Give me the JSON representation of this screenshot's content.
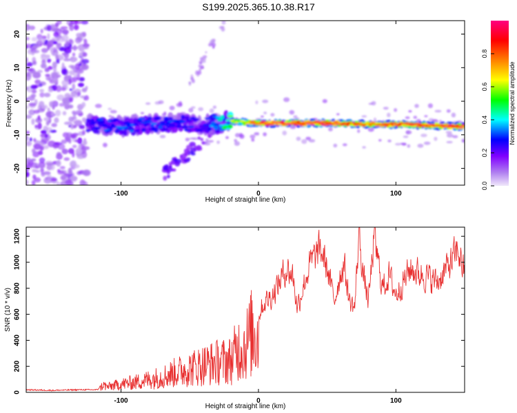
{
  "title": "S199.2025.365.10.38.R17",
  "chart_data": [
    {
      "type": "heatmap",
      "title": "S199.2025.365.10.38.R17",
      "xlabel": "Height of straight line (km)",
      "ylabel": "Frequency (Hz)",
      "xlim": [
        -169,
        150
      ],
      "ylim": [
        -25,
        24
      ],
      "x_ticks": [
        -100,
        0,
        100
      ],
      "y_ticks": [
        20,
        10,
        0,
        -10,
        -20
      ],
      "colorbar": {
        "label": "Normalized spectral amplitude",
        "range": [
          0.0,
          1.0
        ],
        "ticks": [
          0.0,
          0.2,
          0.4,
          0.6,
          0.8
        ],
        "tick_labels": [
          "0.0",
          "0.2",
          "0.4",
          "0.6",
          "0.8"
        ],
        "colors": [
          "#f0e8fa",
          "#8000ff",
          "#0000ff",
          "#00ffff",
          "#00ff00",
          "#ffff00",
          "#ff8000",
          "#ff0000",
          "#ff0080"
        ]
      },
      "noise_region": {
        "x_range": [
          -169,
          -125
        ],
        "freq_range": [
          -25,
          24
        ],
        "amplitude": 0.15
      },
      "signal_band": [
        {
          "x": -124,
          "freq": -7,
          "amp": 0.28
        },
        {
          "x": -100,
          "freq": -7.5,
          "amp": 0.3
        },
        {
          "x": -80,
          "freq": -7,
          "amp": 0.3
        },
        {
          "x": -60,
          "freq": -6.5,
          "amp": 0.28
        },
        {
          "x": -40,
          "freq": -7,
          "amp": 0.25
        },
        {
          "x": -20,
          "freq": -6,
          "amp": 0.55
        },
        {
          "x": 0,
          "freq": -6.5,
          "amp": 0.85
        },
        {
          "x": 20,
          "freq": -6.5,
          "amp": 0.9
        },
        {
          "x": 50,
          "freq": -6.5,
          "amp": 0.95
        },
        {
          "x": 80,
          "freq": -6.8,
          "amp": 0.8
        },
        {
          "x": 110,
          "freq": -7,
          "amp": 0.85
        },
        {
          "x": 140,
          "freq": -7.5,
          "amp": 0.9
        }
      ]
    },
    {
      "type": "line",
      "xlabel": "Height of straight line (km)",
      "ylabel": "SNR (10 * v/v)",
      "xlim": [
        -169,
        150
      ],
      "ylim": [
        0,
        1270
      ],
      "x_ticks": [
        -100,
        0,
        100
      ],
      "y_ticks": [
        0,
        200,
        400,
        600,
        800,
        1000,
        1200
      ],
      "color": "#e83030",
      "series": [
        {
          "name": "SNR",
          "x": [
            -169,
            -150,
            -130,
            -117,
            -113,
            -110,
            -100,
            -90,
            -80,
            -70,
            -60,
            -50,
            -40,
            -30,
            -20,
            -15,
            -10,
            -5,
            0,
            5,
            10,
            15,
            20,
            25,
            28,
            32,
            38,
            45,
            50,
            55,
            58,
            62,
            66,
            70,
            73,
            76,
            80,
            84,
            90,
            95,
            100,
            110,
            120,
            130,
            140,
            145,
            150
          ],
          "values": [
            20,
            15,
            20,
            20,
            80,
            60,
            90,
            110,
            140,
            170,
            220,
            260,
            300,
            330,
            350,
            480,
            500,
            650,
            620,
            700,
            750,
            850,
            950,
            900,
            650,
            800,
            1000,
            1100,
            950,
            700,
            850,
            1000,
            700,
            650,
            1250,
            900,
            700,
            1200,
            800,
            900,
            750,
            950,
            900,
            850,
            1000,
            1100,
            900
          ]
        }
      ]
    }
  ]
}
